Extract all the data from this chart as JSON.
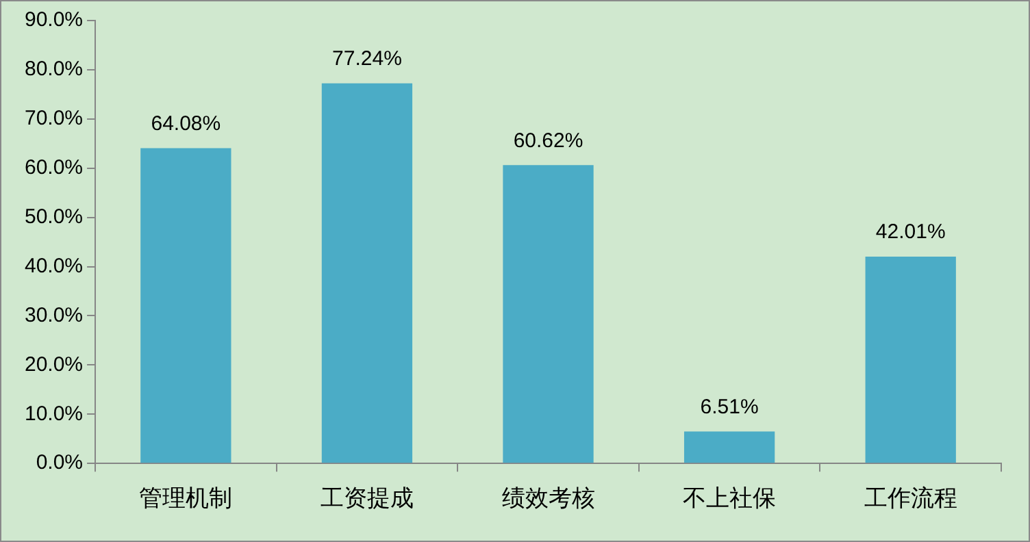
{
  "chart_data": {
    "type": "bar",
    "categories": [
      "管理机制",
      "工资提成",
      "绩效考核",
      "不上社保",
      "工作流程"
    ],
    "values": [
      64.08,
      77.24,
      60.62,
      6.51,
      42.01
    ],
    "value_labels": [
      "64.08%",
      "77.24%",
      "60.62%",
      "6.51%",
      "42.01%"
    ],
    "color": "#4bacc6",
    "ylim": [
      0,
      90
    ],
    "yticks": [
      {
        "value": 0,
        "label": "0.0%"
      },
      {
        "value": 10,
        "label": "10.0%"
      },
      {
        "value": 20,
        "label": "20.0%"
      },
      {
        "value": 30,
        "label": "30.0%"
      },
      {
        "value": 40,
        "label": "40.0%"
      },
      {
        "value": 50,
        "label": "50.0%"
      },
      {
        "value": 60,
        "label": "60.0%"
      },
      {
        "value": 70,
        "label": "70.0%"
      },
      {
        "value": 80,
        "label": "80.0%"
      },
      {
        "value": 90,
        "label": "90.0%"
      }
    ],
    "grid": false,
    "legend": false
  }
}
